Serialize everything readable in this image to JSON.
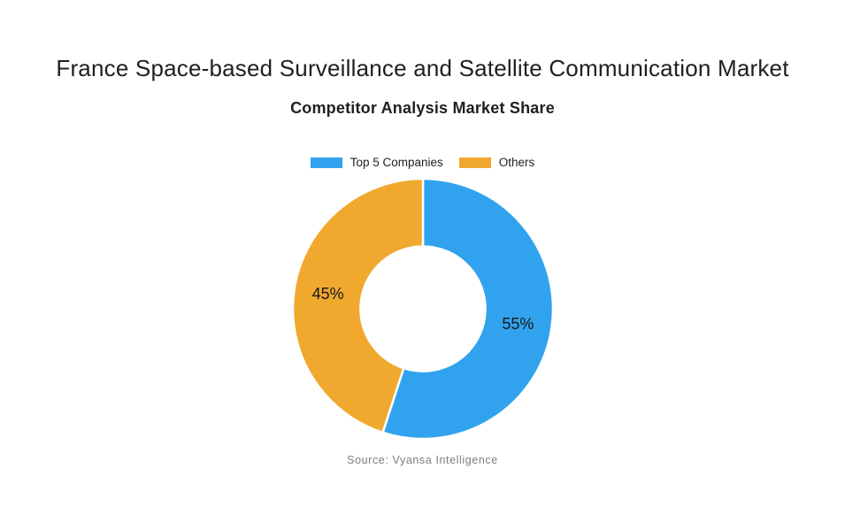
{
  "page": {
    "title": "France Space-based Surveillance and Satellite Communication Market",
    "subtitle": "Competitor Analysis Market Share",
    "source": "Source: Vyansa Intelligence"
  },
  "legend": {
    "items": [
      {
        "label": "Top 5 Companies",
        "color": "#31A3EE"
      },
      {
        "label": "Others",
        "color": "#F0A92E"
      }
    ]
  },
  "chart_data": {
    "type": "pie",
    "subtype": "donut",
    "title": "France Space-based Surveillance and Satellite Communication Market",
    "subtitle": "Competitor Analysis Market Share",
    "source": "Source: Vyansa Intelligence",
    "categories": [
      "Top 5 Companies",
      "Others"
    ],
    "values": [
      55,
      45
    ],
    "slice_labels": [
      "55%",
      "45%"
    ],
    "colors": [
      "#31A3EE",
      "#F0A92E"
    ],
    "start_angle_deg": 0,
    "direction": "clockwise",
    "inner_radius_ratio": 0.48,
    "slice_gap_color": "#ffffff",
    "legend_position": "top"
  }
}
